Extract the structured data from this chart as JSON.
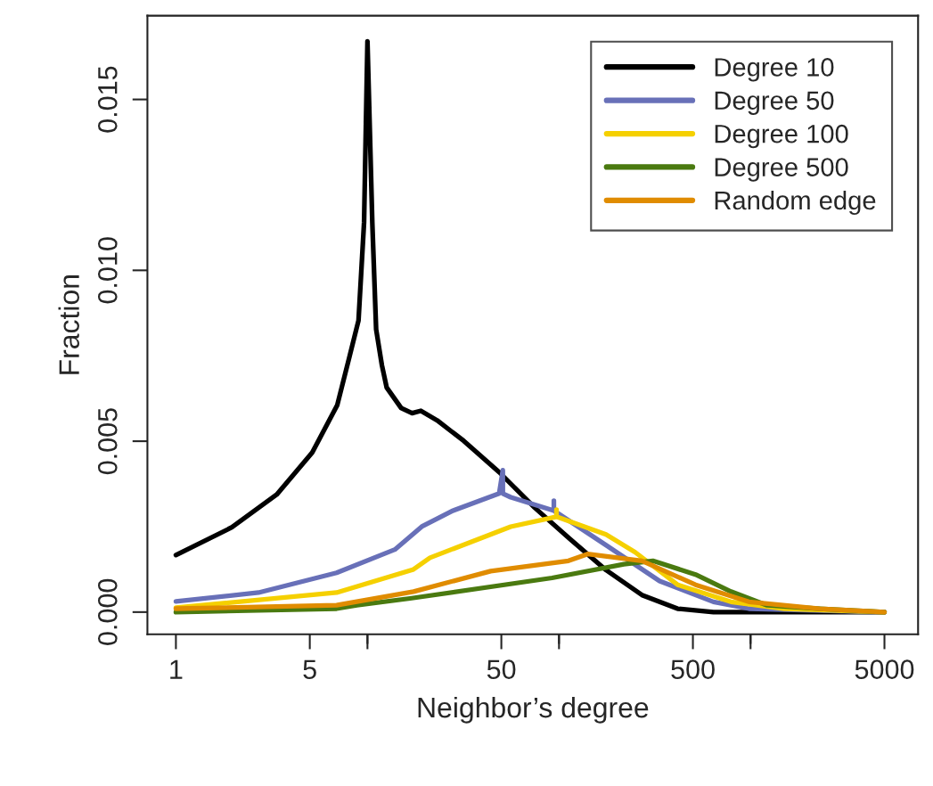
{
  "chart_data": {
    "type": "line",
    "xlabel": "Neighbor’s degree",
    "ylabel": "Fraction",
    "log": "x",
    "xlim": [
      0.71,
      7490
    ],
    "ylim": [
      -0.00065,
      0.01745
    ],
    "xticks": [
      1,
      5,
      {
        "value": 10,
        "label": null
      },
      50,
      {
        "value": 100,
        "label": null
      },
      500,
      {
        "value": 1000,
        "label": null
      },
      5000
    ],
    "yticks": [
      {
        "value": 0,
        "label": "0.000"
      },
      0.005,
      {
        "value": 0.01,
        "label": "0.010"
      },
      0.015
    ],
    "grid": false,
    "legend": "top right",
    "marker": "none",
    "line_style": "solid",
    "series": [
      {
        "name": "Degree 10",
        "color": "#000000",
        "x": [
          1,
          1.96,
          3.36,
          5.15,
          6.95,
          8.07,
          8.98,
          9.6,
          10,
          10.6,
          11.1,
          11.9,
          12.6,
          15,
          17.1,
          19,
          23.1,
          31.8,
          48.8,
          74.8,
          114,
          176,
          271,
          416,
          640,
          1090,
          5000
        ],
        "values": [
          0.00167,
          0.00248,
          0.00344,
          0.00467,
          0.00605,
          0.00749,
          0.00853,
          0.0114,
          0.0167,
          0.0114,
          0.00827,
          0.00722,
          0.00657,
          0.00597,
          0.00582,
          0.00589,
          0.00561,
          0.00501,
          0.00409,
          0.00305,
          0.00214,
          0.00123,
          0.0005,
          0.0001,
          0,
          0,
          0
        ]
      },
      {
        "name": "Degree 50",
        "color": "#6870b8",
        "x": [
          1,
          2.7,
          6.9,
          13.9,
          19.2,
          28,
          48.7,
          50.9,
          50.9,
          56,
          94,
          94,
          94,
          176,
          335,
          640,
          980,
          5000
        ],
        "values": [
          0.00031,
          0.00057,
          0.00115,
          0.00183,
          0.0025,
          0.00297,
          0.00347,
          0.00415,
          0.00347,
          0.00336,
          0.00297,
          0.00326,
          0.00297,
          0.00196,
          0.00091,
          0.0003,
          0.0001,
          0
        ]
      },
      {
        "name": "Degree 100",
        "color": "#f5d000",
        "x": [
          1,
          6.9,
          17.4,
          21.2,
          56,
          97,
          97,
          97,
          176,
          250,
          416,
          790,
          1500,
          5000
        ],
        "values": [
          0.00013,
          0.00057,
          0.00125,
          0.00159,
          0.0025,
          0.00279,
          0.003,
          0.00279,
          0.00227,
          0.00175,
          0.0008,
          0.0003,
          0.0001,
          0
        ]
      },
      {
        "name": "Degree 500",
        "color": "#4a7a10",
        "x": [
          1,
          6.9,
          8.8,
          16.7,
          92,
          218,
          309,
          516,
          790,
          1220,
          2300,
          5000
        ],
        "values": [
          0,
          0.0001,
          0.0002,
          0.0004,
          0.001,
          0.0014,
          0.0015,
          0.0011,
          0.0006,
          0.0002,
          0.0001,
          0
        ]
      },
      {
        "name": "Random edge",
        "color": "#e08c00",
        "x": [
          1,
          6.9,
          17.4,
          44,
          112,
          141,
          271,
          516,
          980,
          2300,
          5000
        ],
        "values": [
          0.0001,
          0.0002,
          0.0006,
          0.0012,
          0.0015,
          0.0017,
          0.0015,
          0.0008,
          0.0003,
          0.0001,
          0
        ]
      }
    ]
  }
}
